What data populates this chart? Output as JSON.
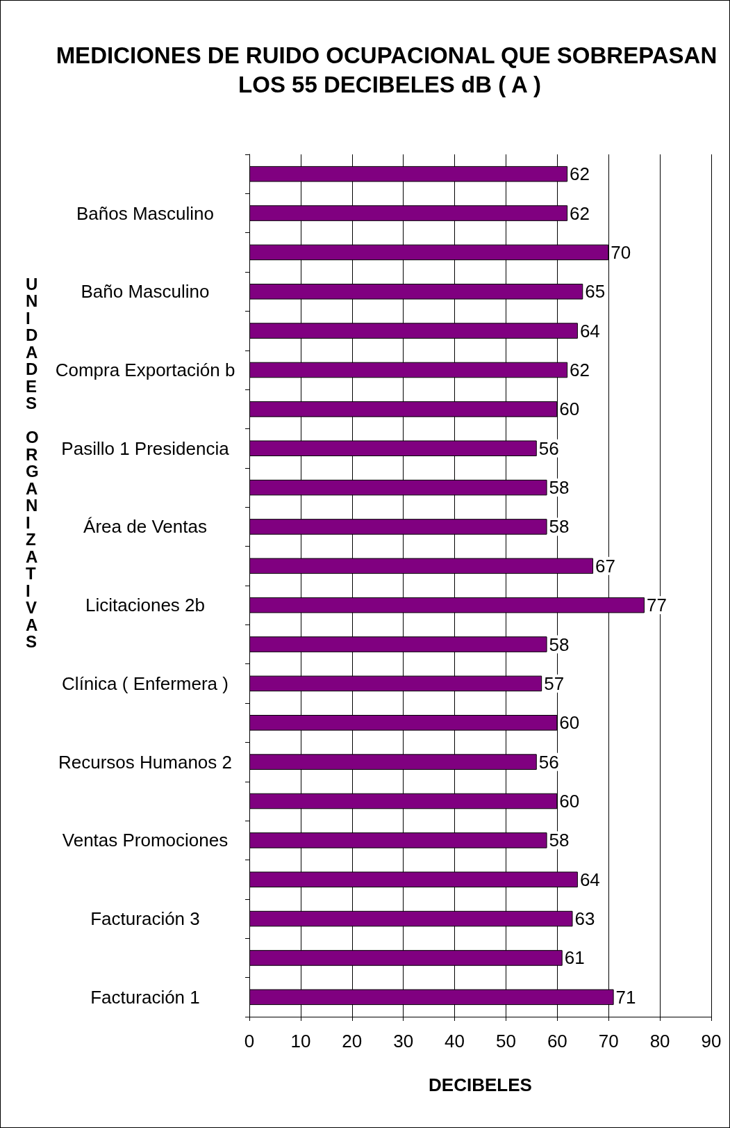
{
  "chart_data": {
    "type": "bar",
    "orientation": "horizontal",
    "title": "MEDICIONES DE RUIDO OCUPACIONAL QUE SOBREPASAN LOS 55 DECIBELES dB ( A )",
    "xlabel": "DECIBELES",
    "ylabel": "UNIDADES ORGANIZATIVAS",
    "categories": [
      null,
      "Baños Masculino",
      null,
      "Baño Masculino",
      null,
      "Compra Exportación b",
      null,
      "Pasillo 1 Presidencia",
      null,
      "Área de Ventas",
      null,
      "Licitaciones 2b",
      null,
      "Clínica ( Enfermera )",
      null,
      "Recursos Humanos 2",
      null,
      "Ventas Promociones",
      null,
      "Facturación 3",
      null,
      "Facturación 1"
    ],
    "values": [
      62,
      62,
      70,
      65,
      64,
      62,
      60,
      56,
      58,
      58,
      67,
      77,
      58,
      57,
      60,
      56,
      60,
      58,
      64,
      63,
      61,
      71
    ],
    "color": "#800080",
    "data_labels": true,
    "grid": "x",
    "xlim": [
      0,
      90
    ],
    "xticks": [
      0,
      10,
      20,
      30,
      40,
      50,
      60,
      70,
      80,
      90
    ]
  }
}
